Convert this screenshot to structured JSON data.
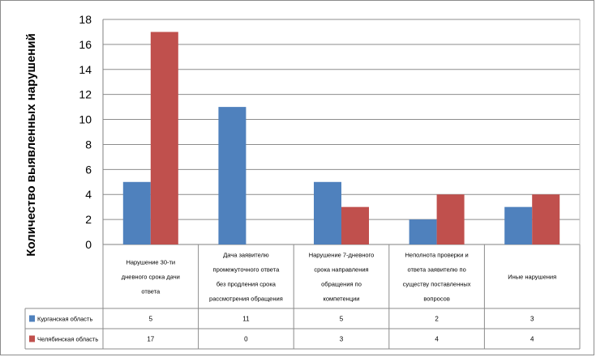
{
  "chart_data": {
    "type": "bar",
    "ylabel": "Количество выявленных нарушений",
    "ylim": [
      0,
      18
    ],
    "yticks": [
      0,
      2,
      4,
      6,
      8,
      10,
      12,
      14,
      16,
      18
    ],
    "grid": true,
    "legend": "data-table",
    "categories": [
      [
        "Нарушение 30-ти",
        "дневного срока дачи",
        "ответа"
      ],
      [
        "Дача заявителю",
        "промежуточного ответа",
        "без продления срока",
        "рассмотрения обращения"
      ],
      [
        "Нарушение 7-дневного",
        "срока направления",
        "обращения по",
        "компетенции"
      ],
      [
        "Неполнота проверки и",
        "ответа заявителю по",
        "существу поставленных",
        "вопросов"
      ],
      [
        "Иные нарушения"
      ]
    ],
    "series": [
      {
        "name": "Курганская область",
        "color": "#4f81bd",
        "values": [
          5,
          11,
          5,
          2,
          3
        ]
      },
      {
        "name": "Челябинская область",
        "color": "#c0504d",
        "values": [
          17,
          0,
          3,
          4,
          4
        ]
      }
    ]
  }
}
